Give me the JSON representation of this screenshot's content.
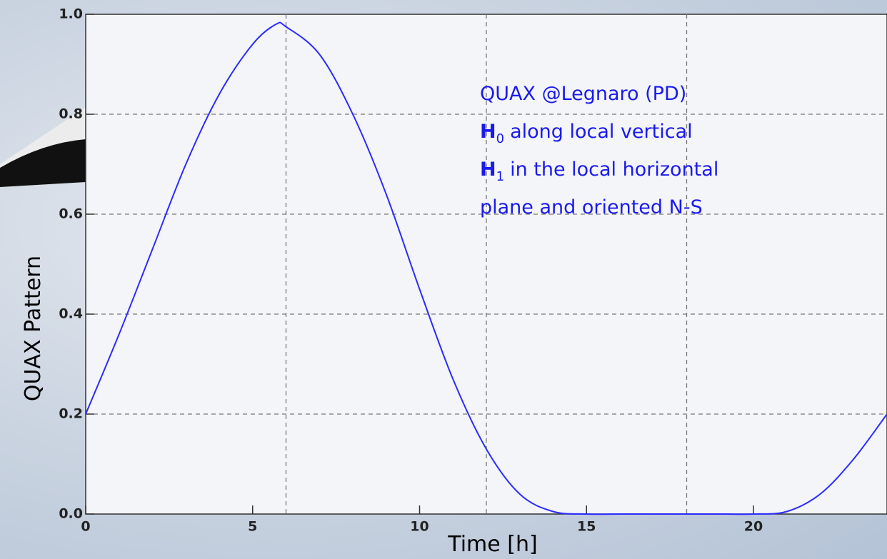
{
  "chart_data": {
    "type": "line",
    "xlabel": "Time [h]",
    "ylabel": "QUAX Pattern",
    "annotation": {
      "line1": "QUAX @Legnaro (PD)",
      "line2": {
        "symbol": "H",
        "subscript": "0",
        "text": "along local vertical"
      },
      "line3": {
        "symbol": "H",
        "subscript": "1",
        "text": "in the local horizontal"
      },
      "line4": "plane and oriented N-S"
    },
    "x": [
      0,
      1,
      2,
      3,
      4,
      5,
      5.7,
      6,
      7,
      8,
      9,
      10,
      11,
      12,
      13,
      14,
      15,
      16,
      17,
      18,
      19,
      20,
      21,
      22,
      23,
      24
    ],
    "series": [
      {
        "name": "QUAX Pattern",
        "color": "#2b2bff",
        "values": [
          0.2,
          0.36,
          0.53,
          0.7,
          0.84,
          0.94,
          0.98,
          0.975,
          0.92,
          0.8,
          0.64,
          0.45,
          0.27,
          0.13,
          0.04,
          0.005,
          0.0,
          0.0,
          0.0,
          0.0,
          0.0,
          0.0,
          0.005,
          0.04,
          0.11,
          0.2
        ]
      }
    ],
    "xlim": [
      0,
      24
    ],
    "ylim": [
      0,
      1
    ],
    "xticks": [
      0,
      5,
      10,
      15,
      20
    ],
    "yticks": [
      {
        "value": 0,
        "label": "0.0"
      },
      0.2,
      0.4,
      0.6,
      0.8,
      {
        "value": 1,
        "label": "1.0"
      }
    ],
    "xgrid": [
      6,
      12,
      18
    ],
    "ygrid": [
      0.2,
      0.4,
      0.6,
      0.8
    ],
    "grid": true
  }
}
